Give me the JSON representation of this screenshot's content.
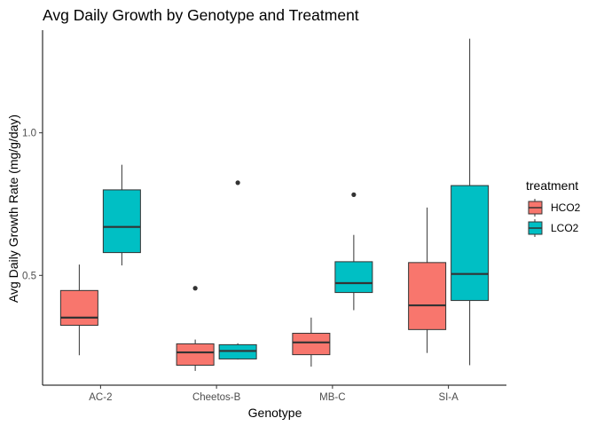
{
  "chart_data": {
    "type": "boxplot",
    "title": "Avg Daily Growth by Genotype and Treatment",
    "xlabel": "Genotype",
    "ylabel": "Avg Daily Growth Rate (mg/g/day)",
    "categories": [
      "AC-2",
      "Cheetos-B",
      "MB-C",
      "SI-A"
    ],
    "yticks": [
      0.5,
      1.0
    ],
    "ytick_labels": [
      "0.5",
      "1.0"
    ],
    "ylim": [
      0.115,
      1.36
    ],
    "grid": false,
    "legend": {
      "title": "treatment",
      "position": "right"
    },
    "series": [
      {
        "name": "HCO2",
        "color": "#F8766D",
        "boxes": [
          {
            "category": "AC-2",
            "min": 0.22,
            "q1": 0.325,
            "median": 0.352,
            "q3": 0.447,
            "max": 0.538,
            "outliers": []
          },
          {
            "category": "Cheetos-B",
            "min": 0.165,
            "q1": 0.185,
            "median": 0.23,
            "q3": 0.26,
            "max": 0.275,
            "outliers": [
              0.455
            ]
          },
          {
            "category": "MB-C",
            "min": 0.18,
            "q1": 0.222,
            "median": 0.265,
            "q3": 0.297,
            "max": 0.352,
            "outliers": []
          },
          {
            "category": "SI-A",
            "min": 0.228,
            "q1": 0.31,
            "median": 0.395,
            "q3": 0.545,
            "max": 0.738,
            "outliers": []
          }
        ]
      },
      {
        "name": "LCO2",
        "color": "#00BFC4",
        "boxes": [
          {
            "category": "AC-2",
            "min": 0.535,
            "q1": 0.58,
            "median": 0.67,
            "q3": 0.8,
            "max": 0.888,
            "outliers": []
          },
          {
            "category": "Cheetos-B",
            "min": 0.205,
            "q1": 0.207,
            "median": 0.235,
            "q3": 0.257,
            "max": 0.262,
            "outliers": [
              0.825
            ]
          },
          {
            "category": "MB-C",
            "min": 0.378,
            "q1": 0.44,
            "median": 0.473,
            "q3": 0.548,
            "max": 0.642,
            "outliers": [
              0.783
            ]
          },
          {
            "category": "SI-A",
            "min": 0.185,
            "q1": 0.412,
            "median": 0.505,
            "q3": 0.815,
            "max": 1.33,
            "outliers": []
          }
        ]
      }
    ]
  }
}
